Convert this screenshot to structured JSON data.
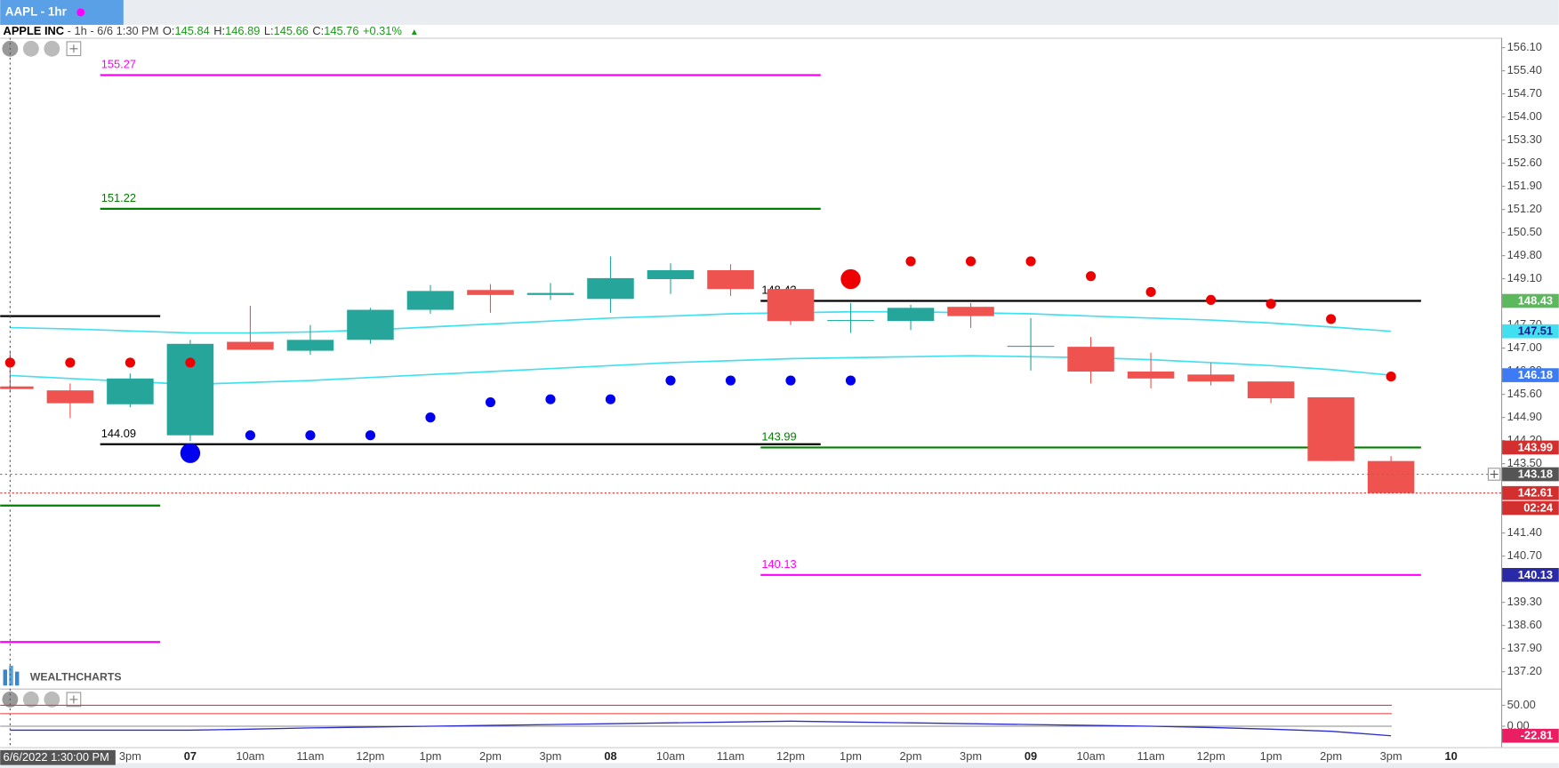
{
  "header": {
    "tab": "AAPL - 1hr",
    "symbol": "APPLE INC",
    "meta": " - 1h - 6/6 1:30 PM",
    "ohlc_labels": [
      "O:",
      "H:",
      "L:",
      "C:"
    ],
    "change": "+0.31%",
    "arrow": "▲",
    "watermark": "WEALTHCHARTS"
  },
  "chart_data": {
    "type": "candlestick",
    "categories": [
      null,
      null,
      "3pm",
      "07",
      "10am",
      "11am",
      "12pm",
      "1pm",
      "2pm",
      "3pm",
      "08",
      "10am",
      "11am",
      "12pm",
      "1pm",
      "2pm",
      "3pm",
      "09",
      "10am",
      "11am",
      "12pm",
      "1pm",
      "2pm",
      "3pm",
      "10"
    ],
    "open": [
      145.84,
      145.72,
      145.3,
      144.36,
      147.19,
      146.92,
      147.25,
      148.16,
      148.76,
      148.61,
      148.49,
      149.09,
      149.36,
      148.79,
      147.82,
      147.82,
      148.25,
      147.04,
      147.04,
      146.29,
      146.2,
      145.99,
      145.51,
      143.58,
      null
    ],
    "high": [
      146.89,
      145.93,
      146.23,
      147.25,
      148.28,
      147.7,
      148.22,
      148.91,
      148.94,
      148.97,
      149.78,
      149.57,
      149.54,
      148.85,
      148.37,
      148.31,
      148.37,
      147.91,
      147.34,
      146.86,
      146.56,
      145.99,
      145.51,
      143.73,
      null
    ],
    "low": [
      145.66,
      144.88,
      145.21,
      144.18,
      146.95,
      146.8,
      147.13,
      148.04,
      148.07,
      148.46,
      148.07,
      148.64,
      148.58,
      147.7,
      147.46,
      147.55,
      147.61,
      146.32,
      145.93,
      145.78,
      145.87,
      145.33,
      143.58,
      142.61,
      null
    ],
    "close": [
      145.76,
      145.33,
      146.08,
      147.13,
      146.95,
      147.25,
      148.16,
      148.73,
      148.61,
      148.67,
      149.12,
      149.36,
      148.79,
      147.82,
      147.85,
      148.22,
      147.97,
      147.07,
      146.29,
      146.08,
      145.99,
      145.48,
      143.58,
      142.61,
      null
    ],
    "up_color": "#26a69a",
    "down_color": "#ef5350",
    "ylim": [
      136.69,
      156.4
    ],
    "yticks": [
      {
        "value": 156.1,
        "label": "156.10"
      },
      {
        "value": 155.4,
        "label": "155.40"
      },
      {
        "value": 154.7,
        "label": "154.70"
      },
      {
        "value": 154,
        "label": "154.00"
      },
      {
        "value": 153.3,
        "label": "153.30"
      },
      {
        "value": 152.6,
        "label": "152.60"
      },
      {
        "value": 151.9,
        "label": "151.90"
      },
      {
        "value": 151.2,
        "label": "151.20"
      },
      {
        "value": 150.5,
        "label": "150.50"
      },
      {
        "value": 149.8,
        "label": "149.80"
      },
      {
        "value": 149.1,
        "label": "149.10"
      },
      {
        "value": 147.7,
        "label": "147.70"
      },
      {
        "value": 147,
        "label": "147.00"
      },
      {
        "value": 146.3,
        "label": "146.30"
      },
      {
        "value": 145.6,
        "label": "145.60"
      },
      {
        "value": 144.9,
        "label": "144.90"
      },
      {
        "value": 144.2,
        "label": "144.20"
      },
      {
        "value": 143.5,
        "label": "143.50"
      },
      {
        "value": 141.4,
        "label": "141.40"
      },
      {
        "value": 140.7,
        "label": "140.70"
      },
      {
        "value": 139.3,
        "label": "139.30"
      },
      {
        "value": 138.6,
        "label": "138.60"
      },
      {
        "value": 137.9,
        "label": "137.90"
      },
      {
        "value": 137.2,
        "label": "137.20"
      }
    ],
    "sar": {
      "values": [
        146.56,
        146.56,
        146.56,
        146.56,
        144.36,
        144.36,
        144.36,
        144.9,
        145.36,
        145.45,
        145.45,
        146.02,
        146.02,
        146.02,
        146.02,
        149.63,
        149.63,
        149.63,
        149.18,
        148.7,
        148.46,
        148.34,
        147.88,
        146.14,
        null
      ],
      "colors": [
        "#ee0000",
        "#ee0000",
        "#ee0000",
        "#ee0000",
        "#0000ee",
        "#0000ee",
        "#0000ee",
        "#0000ee",
        "#0000ee",
        "#0000ee",
        "#0000ee",
        "#0000ee",
        "#0000ee",
        "#0000ee",
        "#0000ee",
        "#ee0000",
        "#ee0000",
        "#ee0000",
        "#ee0000",
        "#ee0000",
        "#ee0000",
        "#ee0000",
        "#ee0000",
        "#ee0000",
        null
      ]
    },
    "signals": [
      {
        "index": 3,
        "value": 143.82,
        "color": "#0000ee"
      },
      {
        "index": 14,
        "value": 149.09,
        "color": "#ee0000"
      }
    ],
    "ma": [
      {
        "color": "#40e0f0",
        "badge": "#40e0f0",
        "badge_text": "#1a1a8a",
        "values": [
          147.62,
          147.58,
          147.52,
          147.46,
          147.46,
          147.49,
          147.55,
          147.64,
          147.73,
          147.82,
          147.91,
          147.97,
          148.04,
          148.07,
          148.1,
          148.1,
          148.07,
          148.04,
          147.97,
          147.91,
          147.85,
          147.76,
          147.64,
          147.51,
          null
        ]
      },
      {
        "color": "#40e0f0",
        "badge": "#3d7bf5",
        "badge_text": "#ffffff",
        "values": [
          146.17,
          146.08,
          145.99,
          145.9,
          145.96,
          146.02,
          146.11,
          146.2,
          146.29,
          146.38,
          146.47,
          146.56,
          146.62,
          146.68,
          146.71,
          146.74,
          146.77,
          146.74,
          146.71,
          146.65,
          146.56,
          146.47,
          146.35,
          146.18,
          null
        ]
      }
    ],
    "levels": [
      {
        "value": 155.27,
        "color": "#ff00ff",
        "start": 1.5,
        "end": 13.5
      },
      {
        "value": 151.22,
        "color": "#008000",
        "start": 1.5,
        "end": 13.5
      },
      {
        "value": 144.09,
        "color": "#000000",
        "start": 1.5,
        "end": 13.5
      },
      {
        "value": 148.43,
        "color": "#000000",
        "start": 12.5,
        "end": 23.5,
        "badge": "#5cb85c"
      },
      {
        "value": 143.99,
        "color": "#008000",
        "start": 12.5,
        "end": 23.5,
        "badge": "#d32f2f"
      },
      {
        "value": 140.13,
        "color": "#ff00ff",
        "start": 12.5,
        "end": 23.5,
        "badge": "#2a2aa8"
      }
    ],
    "segments": [
      {
        "value": 147.97,
        "color": "#000000",
        "start": -0.2,
        "end": 2.5
      },
      {
        "value": 142.23,
        "color": "#008000",
        "start": -0.2,
        "end": 2.5
      },
      {
        "value": 138.1,
        "color": "#ff00ff",
        "start": -0.2,
        "end": 2.5
      }
    ],
    "last_color": "#d32f2f",
    "countdown": "02:24",
    "crosshair": 143.18,
    "crosshair_index": 0,
    "crosshair_time": "6/6/2022 1:30:00 PM",
    "oscillator": {
      "ylim": [
        -50,
        83
      ],
      "yticks": [
        {
          "value": 50,
          "label": "50.00"
        },
        {
          "value": 0,
          "label": "0.00"
        }
      ],
      "hlines": [
        {
          "value": 50,
          "color": "#e53935"
        },
        {
          "value": 30,
          "color": "#e53935"
        },
        {
          "value": 0,
          "color": "#888888"
        }
      ],
      "color": "#2b2bd0",
      "badge": "#e91e63",
      "values": [
        -9.5,
        -9.5,
        -9.5,
        -9.5,
        -7,
        -4,
        -2,
        0,
        2,
        4,
        6,
        8,
        10,
        12,
        10,
        8,
        6,
        4,
        2,
        0,
        -3,
        -7,
        -12,
        -22.81,
        null
      ]
    }
  }
}
